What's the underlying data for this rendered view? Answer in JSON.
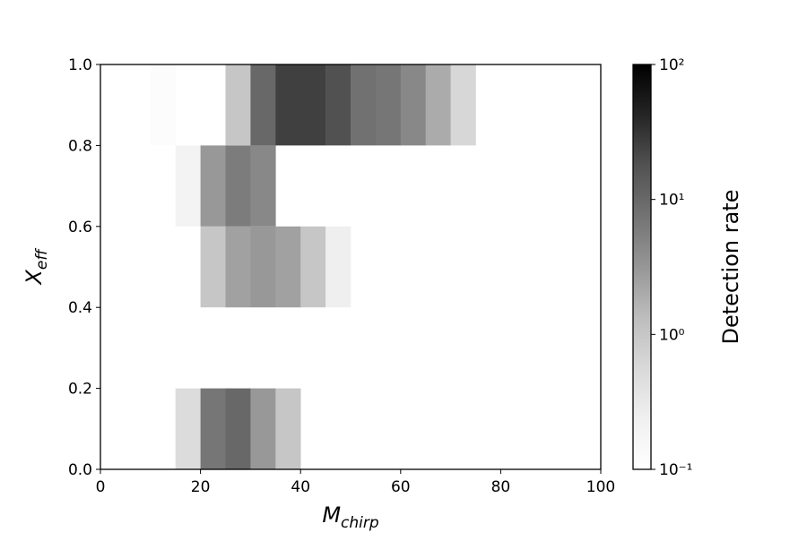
{
  "chart_data": {
    "type": "heatmap",
    "xlabel": "M",
    "xlabel_sub": "chirp",
    "ylabel": "X",
    "ylabel_sub": "eff",
    "colorbar_label": "Detection rate",
    "x_bins": [
      0,
      5,
      10,
      15,
      20,
      25,
      30,
      35,
      40,
      45,
      50,
      55,
      60,
      65,
      70,
      75,
      80,
      85,
      90,
      95,
      100
    ],
    "y_bins": [
      0,
      0.2,
      0.4,
      0.6,
      0.8,
      1
    ],
    "values": [
      [
        null,
        null,
        null,
        0.5,
        7,
        10,
        3,
        1,
        null,
        null,
        null,
        null,
        null,
        null,
        null,
        null,
        null,
        null,
        null,
        null
      ],
      [
        null,
        null,
        null,
        null,
        null,
        null,
        null,
        null,
        null,
        null,
        null,
        null,
        null,
        null,
        null,
        null,
        null,
        null,
        null,
        null
      ],
      [
        null,
        null,
        null,
        null,
        1,
        2.5,
        3,
        2.5,
        1,
        0.25,
        null,
        null,
        null,
        null,
        null,
        null,
        null,
        null,
        null,
        null
      ],
      [
        null,
        null,
        null,
        0.2,
        3,
        6,
        4.5,
        null,
        null,
        null,
        null,
        null,
        null,
        null,
        null,
        null,
        null,
        null,
        null,
        null
      ],
      [
        null,
        null,
        0.12,
        null,
        null,
        1,
        10,
        25,
        25,
        18,
        8,
        7,
        4.5,
        2,
        0.6,
        null,
        null,
        null,
        null,
        null
      ]
    ],
    "xlim": [
      0,
      100
    ],
    "ylim": [
      0,
      1
    ],
    "xticks": [
      0,
      20,
      40,
      60,
      80,
      100
    ],
    "yticks": [
      {
        "value": 0,
        "label": "0.0"
      },
      {
        "value": 0.2,
        "label": "0.2"
      },
      {
        "value": 0.4,
        "label": "0.4"
      },
      {
        "value": 0.6,
        "label": "0.6"
      },
      {
        "value": 0.8,
        "label": "0.8"
      },
      {
        "value": 1,
        "label": "1.0"
      }
    ],
    "clim": [
      0.1,
      100
    ],
    "color_scale": "log",
    "cticks": [
      {
        "value": 0.1,
        "label": "10⁻¹"
      },
      {
        "value": 1,
        "label": "10⁰"
      },
      {
        "value": 10,
        "label": "10¹"
      },
      {
        "value": 100,
        "label": "10²"
      }
    ],
    "colormap": [
      "#ffffff",
      "#f0f0f0",
      "#d9d9d9",
      "#bdbdbd",
      "#969696",
      "#737373",
      "#525252",
      "#252525",
      "#000000"
    ]
  }
}
